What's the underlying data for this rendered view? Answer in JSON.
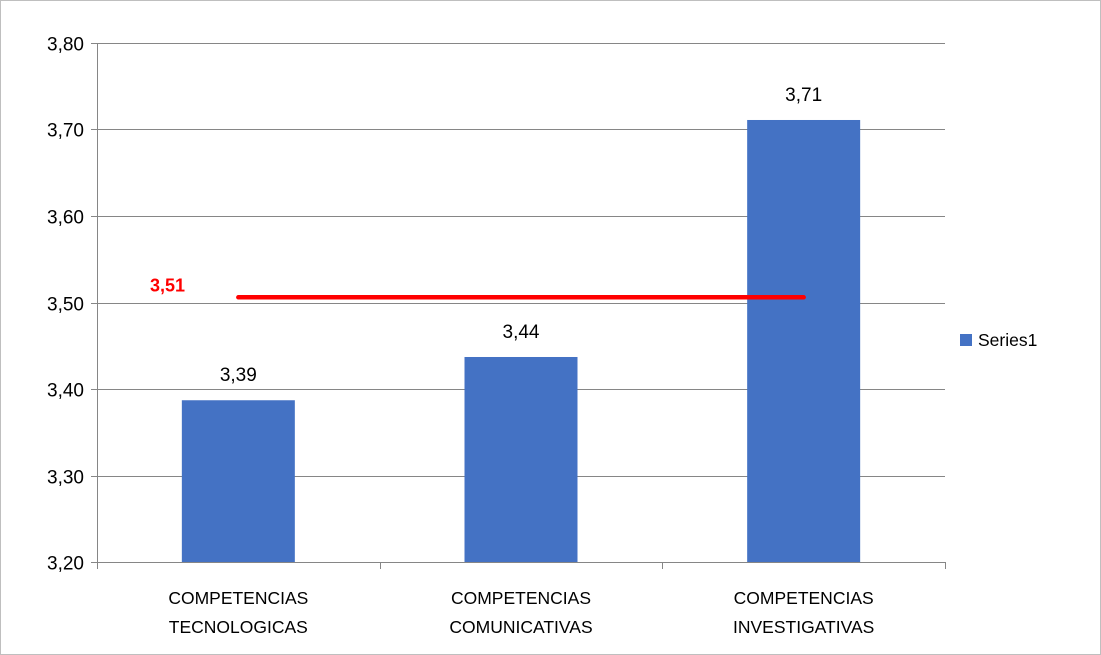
{
  "chart_data": {
    "type": "bar",
    "categories": [
      [
        "COMPETENCIAS",
        "TECNOLOGICAS"
      ],
      [
        "COMPETENCIAS",
        "COMUNICATIVAS"
      ],
      [
        "COMPETENCIAS",
        "INVESTIGATIVAS"
      ]
    ],
    "series": [
      {
        "name": "Series1",
        "values": [
          3.387,
          3.437,
          3.711
        ],
        "value_labels": [
          "3,39",
          "3,44",
          "3,71"
        ],
        "color": "#4472c4"
      }
    ],
    "reference_line": {
      "value": 3.506,
      "label": "3,51",
      "color": "#ff0000"
    },
    "ylim": [
      3.2,
      3.8
    ],
    "y_ticks": [
      {
        "value": 3.2,
        "label": "3,20"
      },
      {
        "value": 3.3,
        "label": "3,30"
      },
      {
        "value": 3.4,
        "label": "3,40"
      },
      {
        "value": 3.5,
        "label": "3,50"
      },
      {
        "value": 3.6,
        "label": "3,60"
      },
      {
        "value": 3.7,
        "label": "3,70"
      },
      {
        "value": 3.8,
        "label": "3,80"
      }
    ],
    "grid": true,
    "legend_position": "right",
    "title": "",
    "xlabel": "",
    "ylabel": ""
  }
}
